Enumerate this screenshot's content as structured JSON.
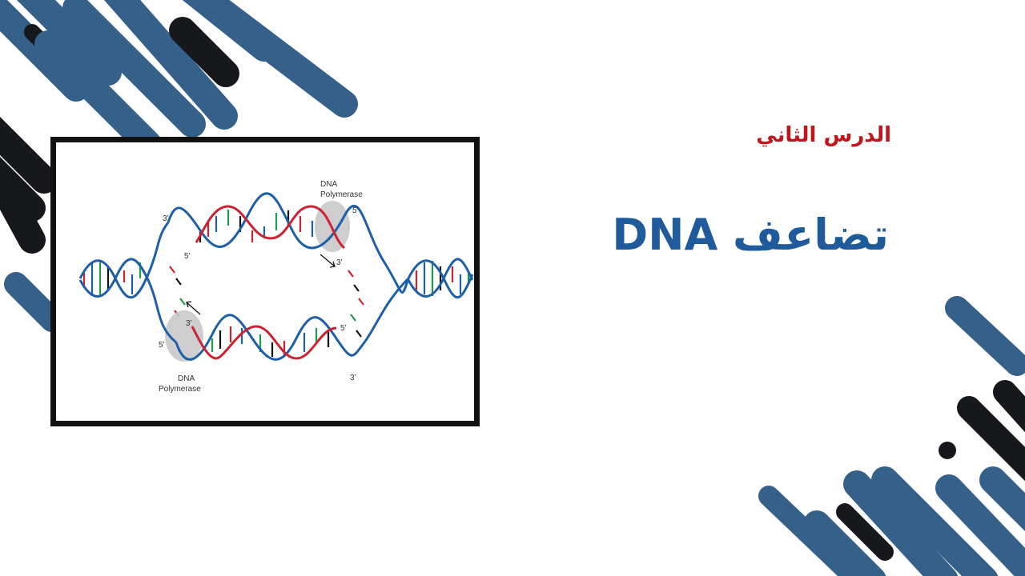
{
  "slide": {
    "subtitle": "الدرس الثاني",
    "title": "تضاعف DNA"
  },
  "diagram": {
    "labels": {
      "polymerase_top_line1": "DNA",
      "polymerase_top_line2": "Polymerase",
      "polymerase_bottom_line1": "DNA",
      "polymerase_bottom_line2": "Polymerase",
      "top_left_3": "3’",
      "top_inner_5": "5’",
      "top_right_5": "5’",
      "top_right_3": "3’",
      "bottom_left_3": "3’",
      "bottom_left_5": "5’",
      "bottom_right_5": "5’",
      "bottom_right_3": "3’"
    }
  },
  "colors": {
    "accent_blue": "#34608a",
    "accent_black": "#17181c",
    "title_blue": "#1f5a9a",
    "subtitle_red": "#c0151b",
    "strand_blue": "#1d5fa8",
    "strand_red": "#cc2333"
  }
}
